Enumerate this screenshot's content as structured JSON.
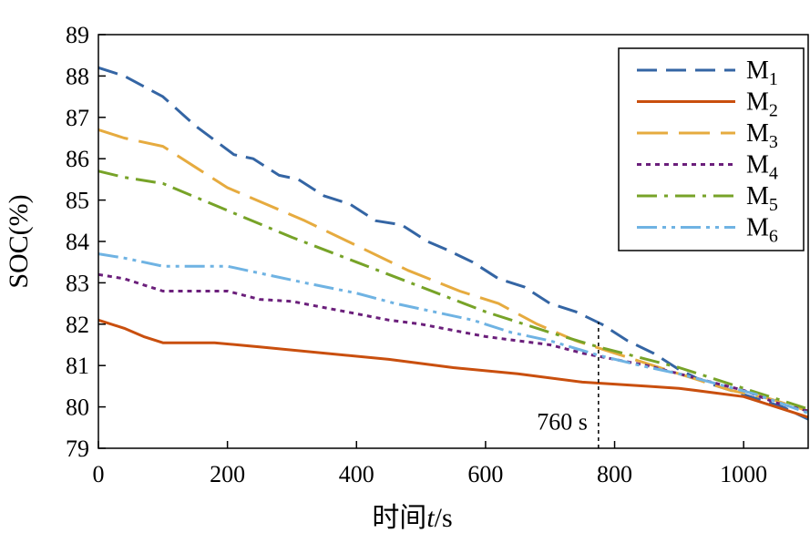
{
  "chart_data": {
    "type": "line",
    "title": "",
    "xlabel": "时间t/s",
    "ylabel": "SOC(%)",
    "xlim": [
      0,
      1100
    ],
    "ylim": [
      79,
      89
    ],
    "xticks": [
      0,
      200,
      400,
      600,
      800,
      1000
    ],
    "yticks": [
      79,
      80,
      81,
      82,
      83,
      84,
      85,
      86,
      87,
      88,
      89
    ],
    "grid": false,
    "legend_position": "top-right",
    "annotation": {
      "label": "760 s",
      "x": 775
    },
    "series": [
      {
        "name": "M1",
        "base": "M",
        "sub": "1",
        "color": "#3465a4",
        "dash": "22,10",
        "x": [
          0,
          40,
          100,
          150,
          210,
          240,
          280,
          310,
          350,
          390,
          430,
          470,
          510,
          540,
          580,
          620,
          660,
          700,
          740,
          780,
          820,
          860,
          900,
          940,
          980,
          1020,
          1060,
          1100
        ],
        "y": [
          88.2,
          88.0,
          87.5,
          86.8,
          86.1,
          86.0,
          85.6,
          85.5,
          85.1,
          84.9,
          84.5,
          84.4,
          84.0,
          83.8,
          83.5,
          83.1,
          82.9,
          82.5,
          82.3,
          82.0,
          81.6,
          81.3,
          80.9,
          80.6,
          80.4,
          80.2,
          80.0,
          79.7
        ]
      },
      {
        "name": "M2",
        "base": "M",
        "sub": "2",
        "color": "#c94f0e",
        "dash": "",
        "x": [
          0,
          40,
          70,
          100,
          180,
          250,
          350,
          450,
          550,
          650,
          750,
          800,
          850,
          900,
          950,
          1000,
          1050,
          1100
        ],
        "y": [
          82.1,
          81.9,
          81.7,
          81.55,
          81.55,
          81.45,
          81.3,
          81.15,
          80.95,
          80.8,
          80.6,
          80.55,
          80.5,
          80.45,
          80.35,
          80.25,
          80.0,
          79.75
        ]
      },
      {
        "name": "M3",
        "base": "M",
        "sub": "3",
        "color": "#e6ab3f",
        "dash": "34,12",
        "x": [
          0,
          40,
          100,
          150,
          200,
          260,
          320,
          400,
          480,
          560,
          620,
          680,
          740,
          800,
          860,
          920,
          980,
          1040,
          1100
        ],
        "y": [
          86.7,
          86.5,
          86.3,
          85.8,
          85.3,
          84.9,
          84.5,
          83.9,
          83.3,
          82.8,
          82.5,
          82.0,
          81.6,
          81.3,
          81.0,
          80.7,
          80.4,
          80.2,
          79.9
        ]
      },
      {
        "name": "M4",
        "base": "M",
        "sub": "4",
        "color": "#6b1f7b",
        "dash": "5,5",
        "x": [
          0,
          40,
          100,
          200,
          250,
          300,
          350,
          400,
          450,
          500,
          550,
          600,
          650,
          700,
          750,
          800,
          850,
          900,
          950,
          1000,
          1050,
          1100
        ],
        "y": [
          83.2,
          83.1,
          82.8,
          82.8,
          82.6,
          82.55,
          82.4,
          82.25,
          82.1,
          82.0,
          81.85,
          81.7,
          81.6,
          81.5,
          81.3,
          81.15,
          81.0,
          80.8,
          80.6,
          80.4,
          80.1,
          79.9
        ]
      },
      {
        "name": "M5",
        "base": "M",
        "sub": "5",
        "color": "#77a328",
        "dash": "22,8,4,8",
        "x": [
          0,
          40,
          100,
          200,
          300,
          400,
          500,
          600,
          700,
          775,
          850,
          900,
          950,
          1000,
          1050,
          1100
        ],
        "y": [
          85.7,
          85.55,
          85.4,
          84.75,
          84.1,
          83.5,
          82.9,
          82.3,
          81.8,
          81.45,
          81.15,
          80.95,
          80.7,
          80.45,
          80.2,
          79.95
        ]
      },
      {
        "name": "M6",
        "base": "M",
        "sub": "6",
        "color": "#6fb3e3",
        "dash": "22,6,4,6,4,6",
        "x": [
          0,
          40,
          100,
          200,
          260,
          320,
          400,
          460,
          520,
          580,
          640,
          700,
          775,
          840,
          900,
          960,
          1020,
          1100
        ],
        "y": [
          83.7,
          83.6,
          83.4,
          83.4,
          83.2,
          83.0,
          82.75,
          82.5,
          82.3,
          82.1,
          81.8,
          81.6,
          81.25,
          81.0,
          80.8,
          80.55,
          80.3,
          79.85
        ]
      }
    ]
  }
}
